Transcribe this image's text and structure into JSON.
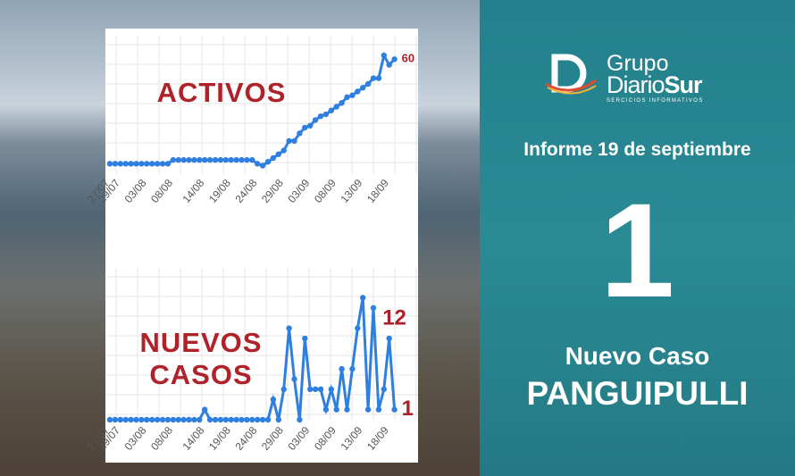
{
  "chart_data": [
    {
      "type": "line",
      "title": "ACTIVOS",
      "categories": [
        "27/07",
        null,
        "29/07",
        null,
        null,
        null,
        null,
        "03/08",
        null,
        null,
        null,
        null,
        "08/08",
        null,
        null,
        null,
        null,
        null,
        "14/08",
        null,
        null,
        null,
        null,
        "19/08",
        null,
        null,
        null,
        null,
        "24/08",
        null,
        null,
        null,
        null,
        "29/08",
        null,
        null,
        null,
        null,
        "03/09",
        null,
        null,
        null,
        null,
        "08/09",
        null,
        null,
        null,
        null,
        "13/09",
        null,
        null,
        null,
        null,
        "18/09",
        null
      ],
      "series": [
        {
          "name": "Activos",
          "color": "#2f7fe0",
          "values": [
            5,
            5,
            5,
            5,
            5,
            5,
            5,
            5,
            5,
            5,
            5,
            5,
            7,
            7,
            7,
            7,
            7,
            7,
            7,
            7,
            7,
            7,
            7,
            7,
            7,
            7,
            7,
            7,
            5,
            4,
            6,
            8,
            10,
            12,
            17,
            17,
            21,
            24,
            25,
            28,
            30,
            31,
            33,
            35,
            37,
            40,
            41,
            43,
            45,
            47,
            50,
            50,
            62,
            57,
            60
          ]
        }
      ],
      "ylim": [
        0,
        70
      ]
    },
    {
      "type": "line",
      "title": "NUEVOS CASOS",
      "categories": [
        "27/07",
        null,
        "29/07",
        null,
        null,
        null,
        null,
        "03/08",
        null,
        null,
        null,
        null,
        "08/08",
        null,
        null,
        null,
        null,
        null,
        "14/08",
        null,
        null,
        null,
        null,
        "19/08",
        null,
        null,
        null,
        null,
        "24/08",
        null,
        null,
        null,
        null,
        "29/08",
        null,
        null,
        null,
        null,
        "03/09",
        null,
        null,
        null,
        null,
        "08/09",
        null,
        null,
        null,
        null,
        "13/09",
        null,
        null,
        null,
        null,
        "18/09",
        null
      ],
      "series": [
        {
          "name": "Nuevos casos",
          "color": "#2f7fe0",
          "values": [
            0,
            0,
            0,
            0,
            0,
            0,
            0,
            0,
            0,
            0,
            0,
            0,
            0,
            0,
            0,
            0,
            0,
            0,
            1,
            0,
            0,
            0,
            0,
            0,
            0,
            0,
            0,
            0,
            0,
            0,
            0,
            2,
            0,
            3,
            9,
            4,
            0,
            8,
            3,
            3,
            3,
            1,
            3,
            1,
            5,
            1,
            5,
            9,
            12,
            1,
            11,
            1,
            3,
            8,
            1
          ]
        }
      ],
      "ylim": [
        0,
        13
      ]
    }
  ],
  "logo": {
    "line1": "Grupo",
    "line2a": "Diario",
    "line2b": "Sur",
    "tagline": "SERCICIOS INFORMATIVOS"
  },
  "report": {
    "date": "Informe 19 de septiembre",
    "count": "1",
    "label": "Nuevo Caso",
    "place": "PANGUIPULLI"
  }
}
